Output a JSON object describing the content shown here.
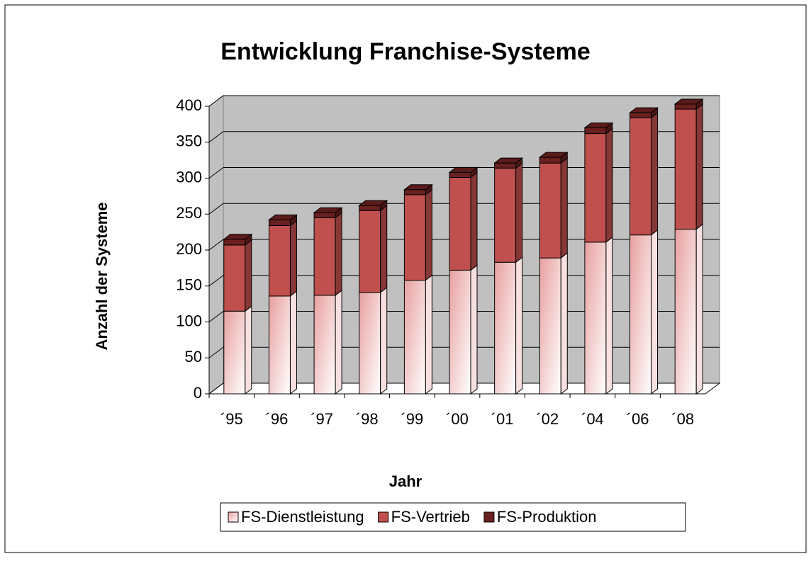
{
  "chart_data": {
    "type": "bar3d_stacked",
    "title": "Entwicklung Franchise-Systeme",
    "x_label": "Jahr",
    "y_label": "Anzahl der Systeme",
    "categories": [
      "´95",
      "´96",
      "´97",
      "´98",
      "´99",
      "´00",
      "´01",
      "´02",
      "´04",
      "´06",
      "´08"
    ],
    "series": [
      {
        "name": "FS-Dienstleistung",
        "color": "#e8a0a0",
        "values": [
          115,
          136,
          137,
          141,
          158,
          172,
          183,
          189,
          211,
          221,
          229
        ]
      },
      {
        "name": "FS-Vertrieb",
        "color": "#c0504d",
        "values": [
          92,
          98,
          108,
          114,
          119,
          129,
          131,
          132,
          151,
          163,
          167
        ]
      },
      {
        "name": "FS-Produktion",
        "color": "#6b2020",
        "values": [
          8,
          8,
          7,
          7,
          7,
          7,
          7,
          8,
          8,
          7,
          7
        ]
      }
    ],
    "ylim": [
      0,
      400
    ],
    "yticks": [
      0,
      50,
      100,
      150,
      200,
      250,
      300,
      350,
      400
    ],
    "grid": true,
    "legend": "bottom"
  }
}
